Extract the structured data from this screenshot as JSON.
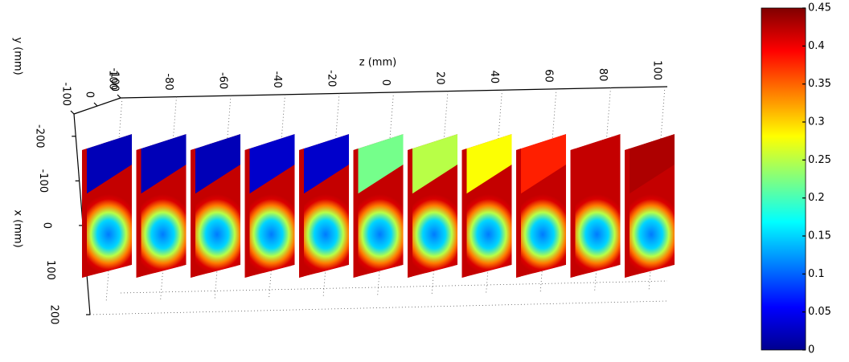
{
  "chart_data": {
    "type": "slice3d",
    "zlabel": "z (mm)",
    "ylabel": "y (mm)",
    "xlabel": "x (mm)",
    "zlim": [
      -100,
      100
    ],
    "zticks": [
      -100,
      -80,
      -60,
      -40,
      -20,
      0,
      20,
      40,
      60,
      80,
      100
    ],
    "ylim": [
      -100,
      100
    ],
    "yticks": [
      -100,
      0,
      100
    ],
    "xlim": [
      -250,
      200
    ],
    "xticks": [
      -200,
      -100,
      0,
      100,
      200
    ],
    "slices": {
      "z": [
        -100,
        -80,
        -60,
        -40,
        -20,
        0,
        20,
        40,
        60,
        80,
        100
      ],
      "values": [
        0.02,
        0.02,
        0.02,
        0.03,
        0.03,
        0.22,
        0.25,
        0.28,
        0.38,
        0.42,
        0.43
      ]
    },
    "clim": [
      0,
      0.45
    ],
    "cticks": [
      0,
      0.05,
      0.1,
      0.15,
      0.2,
      0.25,
      0.3,
      0.35,
      0.4,
      0.45
    ],
    "colormap": [
      "#00008f",
      "#0000ff",
      "#0080ff",
      "#00ffff",
      "#80ff80",
      "#ffff00",
      "#ff8000",
      "#ff0000",
      "#800000"
    ]
  }
}
